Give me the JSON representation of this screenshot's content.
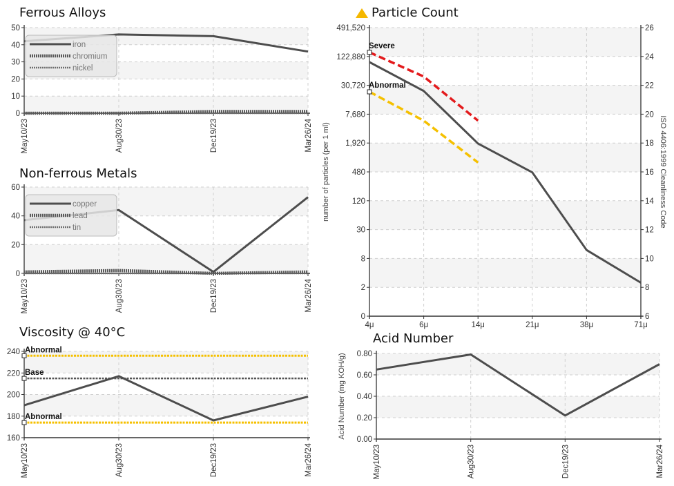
{
  "colors": {
    "series": "#4d4d4d",
    "severe": "#e31a1c",
    "abnormal": "#f5c000",
    "grid": "#cfcfcf"
  },
  "chart_data": [
    {
      "id": "ferrous",
      "type": "line",
      "title": "Ferrous Alloys",
      "categories": [
        "May10/23",
        "Aug30/23",
        "Dec19/23",
        "Mar26/24"
      ],
      "ylim": [
        0,
        50
      ],
      "yticks": [
        "0",
        "10",
        "20",
        "30",
        "40",
        "50"
      ],
      "legend": "top-left",
      "series": [
        {
          "name": "iron",
          "values": [
            42,
            46,
            45,
            36
          ]
        },
        {
          "name": "chromium",
          "values": [
            0,
            0,
            1,
            1
          ]
        },
        {
          "name": "nickel",
          "values": [
            0,
            0,
            0,
            0
          ]
        }
      ]
    },
    {
      "id": "nonferrous",
      "type": "line",
      "title": "Non-ferrous Metals",
      "categories": [
        "May10/23",
        "Aug30/23",
        "Dec19/23",
        "Mar26/24"
      ],
      "ylim": [
        0,
        60
      ],
      "yticks": [
        "0",
        "20",
        "40",
        "60"
      ],
      "legend": "top-left",
      "series": [
        {
          "name": "copper",
          "values": [
            37,
            44,
            1,
            53
          ]
        },
        {
          "name": "lead",
          "values": [
            1,
            2,
            0,
            1
          ]
        },
        {
          "name": "tin",
          "values": [
            0,
            0,
            0,
            0
          ]
        }
      ]
    },
    {
      "id": "viscosity",
      "type": "line",
      "title": "Viscosity @ 40°C",
      "categories": [
        "May10/23",
        "Aug30/23",
        "Dec19/23",
        "Mar26/24"
      ],
      "ylim": [
        160,
        240
      ],
      "yticks": [
        "160",
        "180",
        "200",
        "220",
        "240"
      ],
      "series": [
        {
          "name": "",
          "values": [
            190,
            217,
            176,
            198
          ]
        }
      ],
      "limits": [
        {
          "label": "Abnormal",
          "value": 236,
          "kind": "abnormal"
        },
        {
          "label": "Base",
          "value": 215,
          "kind": "base"
        },
        {
          "label": "Abnormal",
          "value": 174,
          "kind": "abnormal"
        }
      ]
    },
    {
      "id": "particle",
      "type": "line",
      "title": "Particle Count",
      "categories": [
        "4μ",
        "6μ",
        "14μ",
        "21μ",
        "38μ",
        "71μ"
      ],
      "ylabel": "number of particles (per 1 ml)",
      "ylabel_right": "ISO 4406:1999 Cleanliness Code",
      "yscale": "log2",
      "yticks": [
        "0",
        "2",
        "8",
        "30",
        "120",
        "480",
        "1,920",
        "7,680",
        "30,720",
        "122,880",
        "491,520"
      ],
      "yticks_right": [
        "6",
        "8",
        "10",
        "12",
        "14",
        "16",
        "18",
        "20",
        "22",
        "24",
        "26"
      ],
      "series": [
        {
          "name": "",
          "values": [
            100000,
            25000,
            2000,
            500,
            12,
            2.5
          ]
        }
      ],
      "limits": [
        {
          "label": "Severe",
          "kind": "severe",
          "values": [
            160000,
            50000,
            6000
          ]
        },
        {
          "label": "Abnormal",
          "kind": "abnormal",
          "values": [
            24000,
            6000,
            800
          ]
        }
      ]
    },
    {
      "id": "acid",
      "type": "line",
      "title": "Acid Number",
      "categories": [
        "May10/23",
        "Aug30/23",
        "Dec19/23",
        "Mar26/24"
      ],
      "ylabel": "Acid Number (mg KOH/g)",
      "ylim": [
        0,
        0.8
      ],
      "yticks": [
        "0.00",
        "0.20",
        "0.40",
        "0.60",
        "0.80"
      ],
      "series": [
        {
          "name": "",
          "values": [
            0.65,
            0.79,
            0.22,
            0.7
          ]
        }
      ]
    }
  ]
}
